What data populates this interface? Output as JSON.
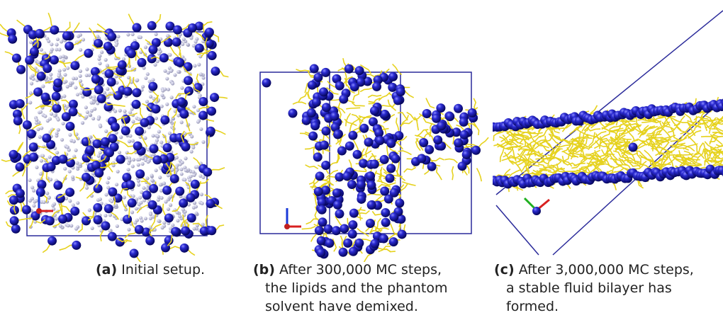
{
  "panels": [
    {
      "label": "(a)",
      "caption": [
        "Initial setup."
      ]
    },
    {
      "label": "(b)",
      "caption": [
        "After 300,000 MC steps,",
        "the lipids and the phantom",
        "solvent have demixed."
      ]
    },
    {
      "label": "(c)",
      "caption": [
        "After 3,000,000 MC steps,",
        "a stable fluid bilayer has",
        "formed."
      ]
    }
  ]
}
